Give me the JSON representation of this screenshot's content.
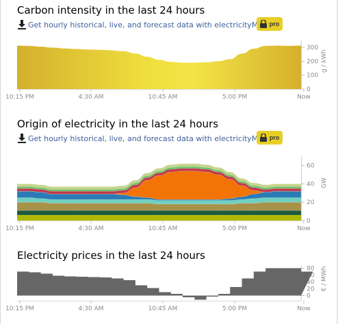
{
  "carbon": {
    "title": "Carbon intensity in the last 24 hours",
    "api_link": "Get hourly historical, live, and forecast data with electricityMap API",
    "pro_label": "pro",
    "unit_label": "g / kWh",
    "y_ticks": [
      "0",
      "100",
      "200",
      "300"
    ],
    "x_ticks": [
      "10:15 PM",
      "4:30 AM",
      "10:45 AM",
      "5:00 PM",
      "Now"
    ]
  },
  "origin": {
    "title": "Origin of electricity in the last 24 hours",
    "api_link": "Get hourly historical, live, and forecast data with electricityMap API",
    "pro_label": "pro",
    "unit_label": "GW",
    "y_ticks": [
      "0",
      "20",
      "40",
      "60"
    ],
    "x_ticks": [
      "10:15 PM",
      "4:30 AM",
      "10:45 AM",
      "5:00 PM",
      "Now"
    ]
  },
  "prices": {
    "title": "Electricity prices in the last 24 hours",
    "unit_label": "€ / MWh",
    "y_ticks": [
      "0",
      "20",
      "40",
      "60",
      "80"
    ],
    "x_ticks": [
      "10:15 PM",
      "4:30 AM",
      "10:45 AM",
      "5:00 PM",
      "Now"
    ]
  },
  "colors": {
    "pro_badge": "#e8cf26",
    "link": "#3f5e9d",
    "price_fill": "#666666",
    "solar": "#f27406",
    "nuclear": "#aeb800",
    "hydro": "#2a6a8c"
  },
  "chart_data": [
    {
      "type": "area",
      "title": "Carbon intensity in the last 24 hours",
      "ylabel": "g / kWh",
      "ylim": [
        0,
        340
      ],
      "x": [
        0,
        1,
        2,
        3,
        4,
        5,
        6,
        7,
        8,
        9,
        10,
        11,
        12,
        13,
        14,
        15,
        16,
        17,
        18,
        19,
        20,
        21,
        22,
        23,
        24
      ],
      "values": [
        312,
        310,
        305,
        298,
        292,
        288,
        284,
        282,
        278,
        272,
        255,
        232,
        210,
        195,
        190,
        190,
        192,
        200,
        215,
        255,
        290,
        310,
        312,
        310,
        312
      ]
    },
    {
      "type": "area",
      "title": "Origin of electricity in the last 24 hours",
      "ylabel": "GW",
      "ylim": [
        0,
        68
      ],
      "x": [
        0,
        1,
        2,
        3,
        4,
        5,
        6,
        7,
        8,
        9,
        10,
        11,
        12,
        13,
        14,
        15,
        16,
        17,
        18,
        19,
        20,
        21,
        22,
        23,
        24
      ],
      "series": [
        {
          "values": [
            6,
            6,
            6,
            6,
            6,
            6,
            6,
            6,
            6,
            6,
            6,
            6,
            6,
            6,
            6,
            6,
            6,
            6,
            6,
            6,
            6,
            6,
            6,
            6,
            6
          ]
        },
        {
          "values": [
            5,
            5,
            5,
            5,
            5,
            5,
            5,
            5,
            5,
            5,
            5,
            5,
            5,
            5,
            5,
            5,
            5,
            5,
            5,
            5,
            5,
            5,
            5,
            5,
            5
          ]
        },
        {
          "values": [
            9,
            9,
            9,
            8,
            8,
            8,
            8,
            8,
            8,
            8,
            8,
            8,
            7,
            7,
            7,
            7,
            7,
            7,
            7,
            8,
            8,
            9,
            9,
            9,
            9
          ]
        },
        {
          "values": [
            5,
            5,
            4,
            4,
            4,
            4,
            4,
            4,
            4,
            4,
            4,
            4,
            4,
            4,
            4,
            4,
            4,
            4,
            4,
            4,
            5,
            5,
            5,
            5,
            5
          ]
        },
        {
          "values": [
            7,
            7,
            7,
            6,
            6,
            6,
            6,
            6,
            6,
            5,
            3,
            2,
            1,
            1,
            1,
            1,
            1,
            1,
            2,
            3,
            5,
            6,
            7,
            7,
            7
          ]
        },
        {
          "values": [
            0,
            0,
            0,
            0,
            0,
            0,
            0,
            0,
            0,
            2,
            10,
            19,
            26,
            30,
            31,
            31,
            30,
            27,
            21,
            12,
            4,
            0,
            0,
            0,
            0
          ]
        },
        {
          "values": [
            3,
            3,
            3,
            3,
            3,
            3,
            3,
            3,
            3,
            3,
            3,
            3,
            3,
            3,
            3,
            3,
            3,
            3,
            3,
            3,
            3,
            3,
            3,
            3,
            3
          ]
        },
        {
          "values": [
            2,
            2,
            2,
            2,
            2,
            2,
            2,
            2,
            2,
            2,
            2,
            2,
            2,
            2,
            2,
            2,
            2,
            2,
            2,
            2,
            2,
            2,
            2,
            2,
            2
          ]
        },
        {
          "values": [
            3,
            3,
            3,
            3,
            3,
            3,
            3,
            3,
            3,
            3,
            3,
            3,
            3,
            3,
            3,
            3,
            3,
            3,
            3,
            3,
            3,
            3,
            3,
            3,
            3
          ]
        }
      ]
    },
    {
      "type": "area",
      "title": "Electricity prices in the last 24 hours",
      "ylabel": "€ / MWh",
      "ylim": [
        -15,
        85
      ],
      "x": [
        0,
        1,
        2,
        3,
        4,
        5,
        6,
        7,
        8,
        9,
        10,
        11,
        12,
        13,
        14,
        15,
        16,
        17,
        18,
        19,
        20,
        21,
        22,
        23,
        24
      ],
      "values": [
        70,
        68,
        64,
        58,
        56,
        55,
        54,
        53,
        50,
        45,
        30,
        22,
        10,
        5,
        -5,
        -12,
        -3,
        5,
        25,
        50,
        70,
        80,
        80,
        80,
        70
      ]
    }
  ]
}
